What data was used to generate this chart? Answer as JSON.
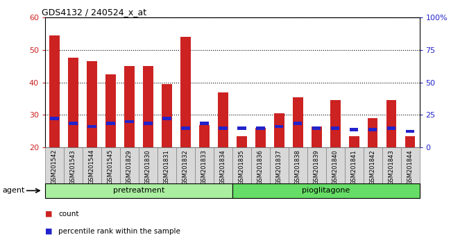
{
  "title": "GDS4132 / 240524_x_at",
  "categories": [
    "GSM201542",
    "GSM201543",
    "GSM201544",
    "GSM201545",
    "GSM201829",
    "GSM201830",
    "GSM201831",
    "GSM201832",
    "GSM201833",
    "GSM201834",
    "GSM201835",
    "GSM201836",
    "GSM201837",
    "GSM201838",
    "GSM201839",
    "GSM201840",
    "GSM201841",
    "GSM201842",
    "GSM201843",
    "GSM201844"
  ],
  "count_values": [
    54.5,
    47.5,
    46.5,
    42.5,
    45.0,
    45.0,
    39.5,
    54.0,
    27.0,
    37.0,
    23.5,
    26.0,
    30.5,
    35.5,
    26.5,
    34.5,
    23.5,
    29.0,
    34.5,
    23.5
  ],
  "percentile_values": [
    29.0,
    27.5,
    26.5,
    27.5,
    28.0,
    27.5,
    29.0,
    26.0,
    27.5,
    26.0,
    26.0,
    26.0,
    26.5,
    27.5,
    26.0,
    26.0,
    25.5,
    25.5,
    26.0,
    25.0
  ],
  "bar_bottom": 20,
  "ylim_left": [
    20,
    60
  ],
  "ylim_right": [
    0,
    100
  ],
  "yticks_left": [
    20,
    30,
    40,
    50,
    60
  ],
  "yticks_right": [
    0,
    25,
    50,
    75,
    100
  ],
  "ytick_right_labels": [
    "0",
    "25",
    "50",
    "75",
    "100%"
  ],
  "bar_color_count": "#cc2222",
  "bar_color_pct": "#2222cc",
  "bg_color": "#ffffff",
  "tick_bg_color": "#d8d8d8",
  "group_pre_color": "#aaeea0",
  "group_pio_color": "#66dd66",
  "group_pre_label": "pretreatment",
  "group_pio_label": "pioglitagone",
  "agent_label": "agent",
  "legend_count_label": "count",
  "legend_pct_label": "percentile rank within the sample"
}
